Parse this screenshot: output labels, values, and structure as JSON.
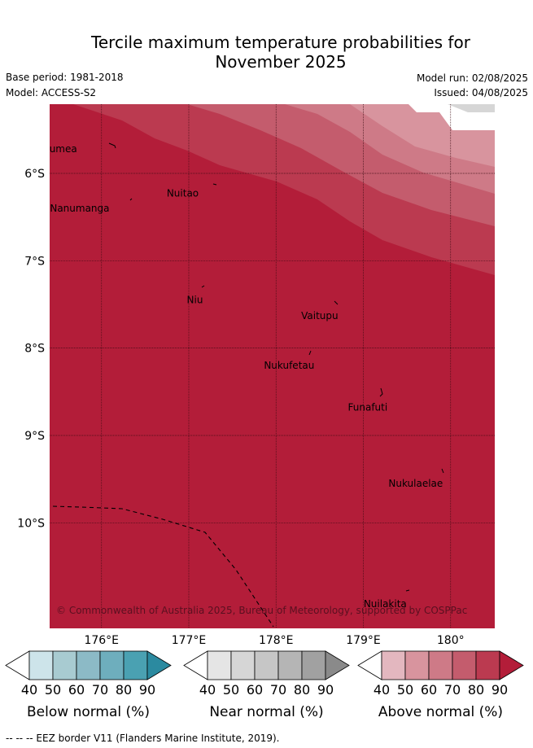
{
  "title_line1": "Tercile maximum temperature probabilities for",
  "title_line2": "November 2025",
  "base_period": "Base period: 1981-2018",
  "model": "Model: ACCESS-S2",
  "model_run": "Model run: 02/08/2025",
  "issued": "Issued: 04/08/2025",
  "map": {
    "lat_ticks": [
      {
        "value": -6,
        "label": "6°S"
      },
      {
        "value": -7,
        "label": "7°S"
      },
      {
        "value": -8,
        "label": "8°S"
      },
      {
        "value": -9,
        "label": "9°S"
      },
      {
        "value": -10,
        "label": "10°S"
      }
    ],
    "lon_ticks": [
      {
        "value": 176,
        "label": "176°E"
      },
      {
        "value": 177,
        "label": "177°E"
      },
      {
        "value": 178,
        "label": "178°E"
      },
      {
        "value": 179,
        "label": "179°E"
      },
      {
        "value": 180,
        "label": "180°"
      }
    ],
    "places": [
      {
        "name": "Nanumea",
        "lon": 175.45,
        "lat": -5.72
      },
      {
        "name": "Nuitao",
        "lon": 176.93,
        "lat": -6.23
      },
      {
        "name": "Nanumanga",
        "lon": 175.75,
        "lat": -6.4
      },
      {
        "name": "Niu",
        "lon": 177.07,
        "lat": -7.45
      },
      {
        "name": "Vaitupu",
        "lon": 178.5,
        "lat": -7.63
      },
      {
        "name": "Nukufetau",
        "lon": 178.15,
        "lat": -8.2
      },
      {
        "name": "Funafuti",
        "lon": 179.05,
        "lat": -8.68
      },
      {
        "name": "Nukulaelae",
        "lon": 179.6,
        "lat": -9.55
      },
      {
        "name": "Nuilakita",
        "lon": 179.25,
        "lat": -10.93
      }
    ],
    "copyright": "© Commonwealth of Australia 2025, Bureau of Meteorology, supported by COSPPac",
    "base_color": "#b31d39"
  },
  "colorbars": [
    {
      "label": "Below normal (%)",
      "ticks": [
        "40",
        "50",
        "60",
        "70",
        "80",
        "90"
      ],
      "colors": [
        "#cde4ea",
        "#a8cbd1",
        "#8cbac6",
        "#6eaebd",
        "#4aa1b2",
        "#2b8aa0"
      ]
    },
    {
      "label": "Near normal (%)",
      "ticks": [
        "40",
        "50",
        "60",
        "70",
        "80",
        "90"
      ],
      "colors": [
        "#e5e5e5",
        "#d6d6d6",
        "#c6c6c6",
        "#b5b5b5",
        "#a1a1a1",
        "#8a8a8a"
      ]
    },
    {
      "label": "Above normal (%)",
      "ticks": [
        "40",
        "50",
        "60",
        "70",
        "80",
        "90"
      ],
      "colors": [
        "#e3b7bf",
        "#d8949e",
        "#ce7a87",
        "#c45c6d",
        "#bb3a50",
        "#b31d39"
      ]
    }
  ],
  "footer": "-- -- -- EEZ border V11 (Flanders Marine Institute, 2019)."
}
